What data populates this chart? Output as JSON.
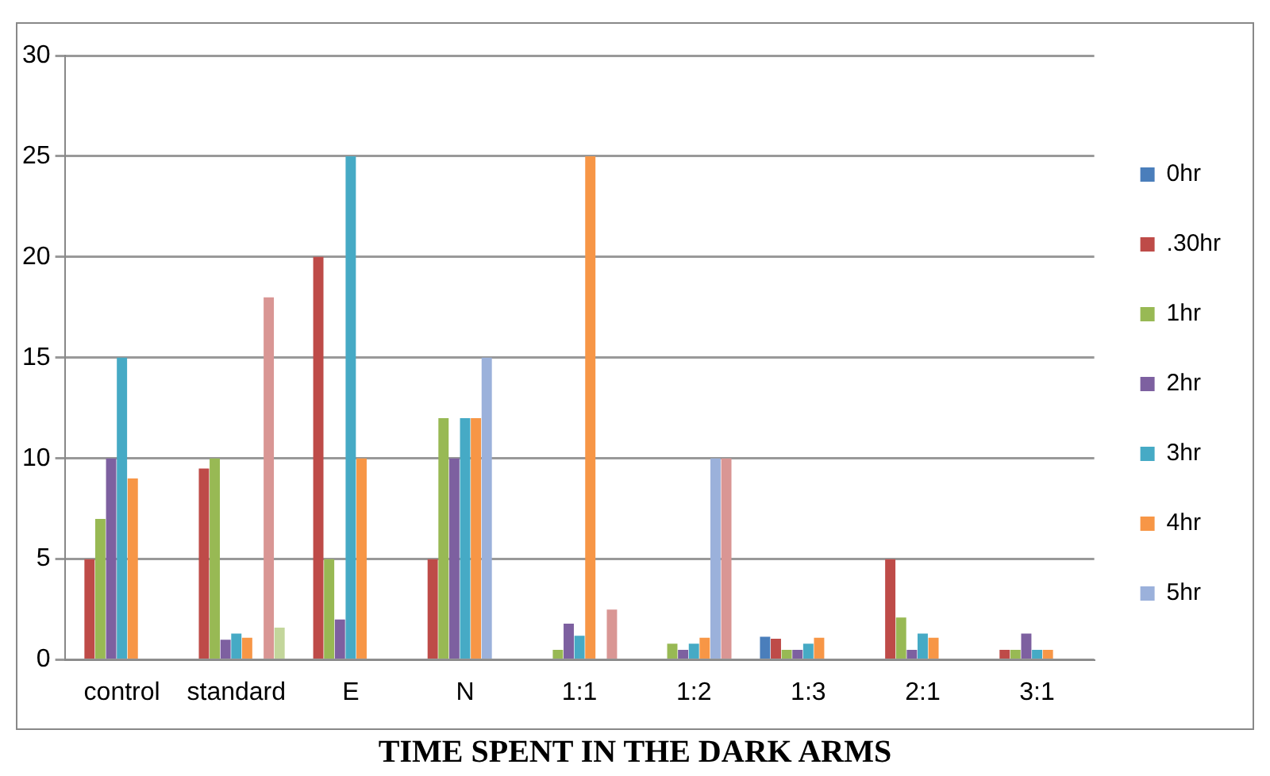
{
  "chart_data": {
    "type": "bar",
    "title": "TIME SPENT IN THE DARK ARMS",
    "categories": [
      "control",
      "standard",
      "E",
      "N",
      "1:1",
      "1:2",
      "1:3",
      "2:1",
      "3:1"
    ],
    "series": [
      {
        "name": "0hr",
        "color": "#4a7ebb",
        "values": [
          0,
          0,
          0,
          0,
          0,
          0,
          1.15,
          0,
          0
        ]
      },
      {
        "name": ".30hr",
        "color": "#be4b48",
        "values": [
          5,
          9.5,
          20,
          5,
          0,
          0,
          1.05,
          5,
          0.5
        ]
      },
      {
        "name": "1hr",
        "color": "#98b954",
        "values": [
          7,
          10,
          5,
          12,
          0.5,
          0.8,
          0.5,
          2.1,
          0.5
        ]
      },
      {
        "name": "2hr",
        "color": "#7d60a0",
        "values": [
          10,
          1,
          2,
          10,
          1.8,
          0.5,
          0.5,
          0.5,
          1.3
        ]
      },
      {
        "name": "3hr",
        "color": "#46aac5",
        "values": [
          15,
          1.3,
          25,
          12,
          1.2,
          0.8,
          0.8,
          1.3,
          0.5
        ]
      },
      {
        "name": "4hr",
        "color": "#f79646",
        "values": [
          9,
          1.1,
          10,
          12,
          25,
          1.1,
          1.1,
          1.1,
          0.5
        ]
      },
      {
        "name": "5hr",
        "color": "#9bb1db",
        "values": [
          0,
          0,
          0,
          15,
          0,
          10,
          0,
          0,
          0
        ]
      },
      {
        "color": "#d99694",
        "values": [
          0,
          18,
          0,
          0,
          2.5,
          10,
          0,
          0,
          0
        ]
      },
      {
        "color": "#c3d69b",
        "values": [
          0,
          1.6,
          0,
          0,
          0,
          0,
          0,
          0,
          0
        ]
      }
    ],
    "ylim": [
      0,
      30
    ],
    "yticks": [
      0,
      5,
      10,
      15,
      20,
      25,
      30
    ],
    "grid": "y",
    "legend": "right"
  }
}
